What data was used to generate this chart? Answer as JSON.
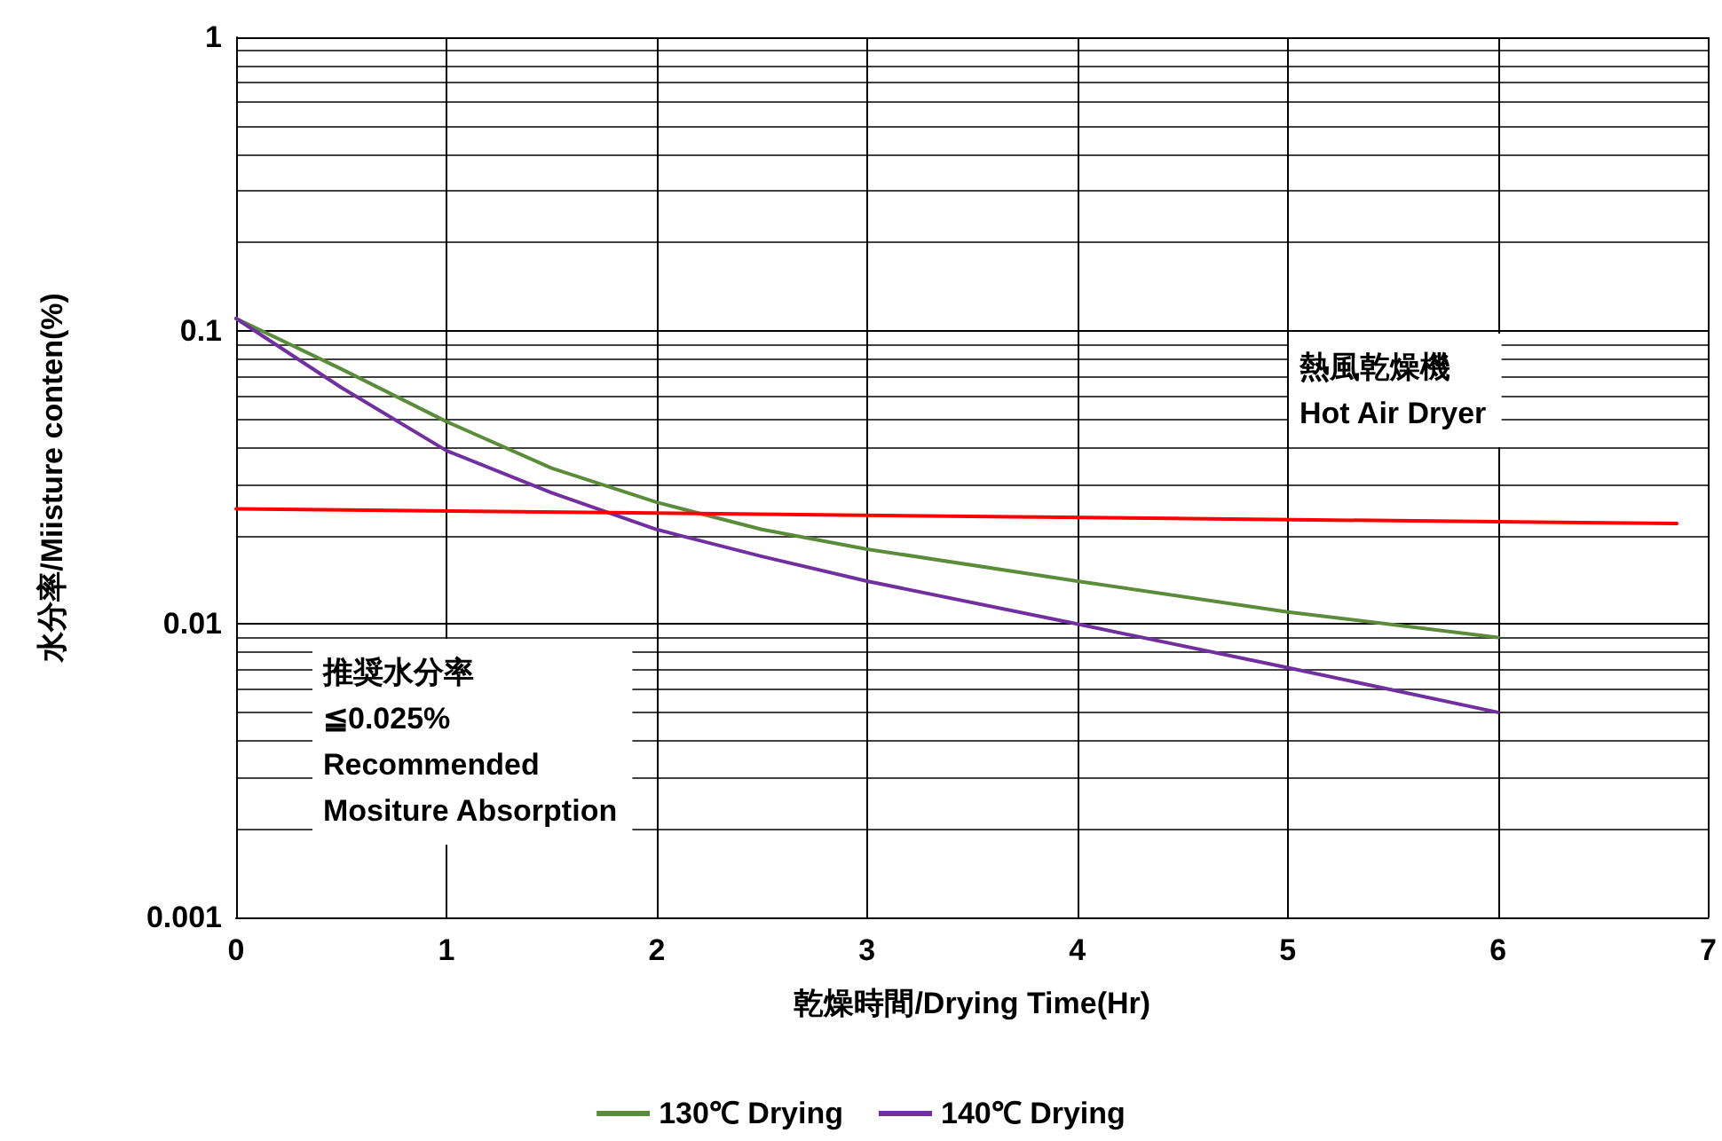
{
  "chart_data": {
    "type": "line",
    "xlabel": "乾燥時間/Drying Time(Hr)",
    "ylabel": "水分率/Miisture conten(%)",
    "log": "y",
    "grid": true,
    "legend": "bottom",
    "marker": "none",
    "line_style": "solid",
    "xlim": [
      0,
      7
    ],
    "xticks": [
      0,
      1,
      2,
      3,
      4,
      5,
      6,
      7
    ],
    "ylim": [
      0.001,
      1
    ],
    "yticks": [
      0.001,
      0.01,
      0.1,
      1
    ],
    "series": [
      {
        "name": "130℃ Drying",
        "color": "#5b8c3a",
        "x": [
          0,
          0.5,
          1,
          1.5,
          2,
          2.5,
          3,
          4,
          5,
          6
        ],
        "values": [
          0.11,
          0.074,
          0.049,
          0.034,
          0.026,
          0.021,
          0.018,
          0.014,
          0.011,
          0.009
        ]
      },
      {
        "name": "140℃ Drying",
        "color": "#7030a0",
        "x": [
          0,
          0.5,
          1,
          1.5,
          2,
          2.5,
          3,
          4,
          5,
          6
        ],
        "values": [
          0.11,
          0.064,
          0.039,
          0.028,
          0.021,
          0.017,
          0.014,
          0.01,
          0.0071,
          0.005
        ]
      },
      {
        "color": "#ff0000",
        "x": [
          0,
          6.85
        ],
        "values": [
          0.0247,
          0.022
        ]
      }
    ],
    "annotations": [
      "熱風乾燥機\nHot Air Dryer",
      "推奨水分率\n≦0.025%\nRecommended\nMositure Absorption"
    ]
  }
}
